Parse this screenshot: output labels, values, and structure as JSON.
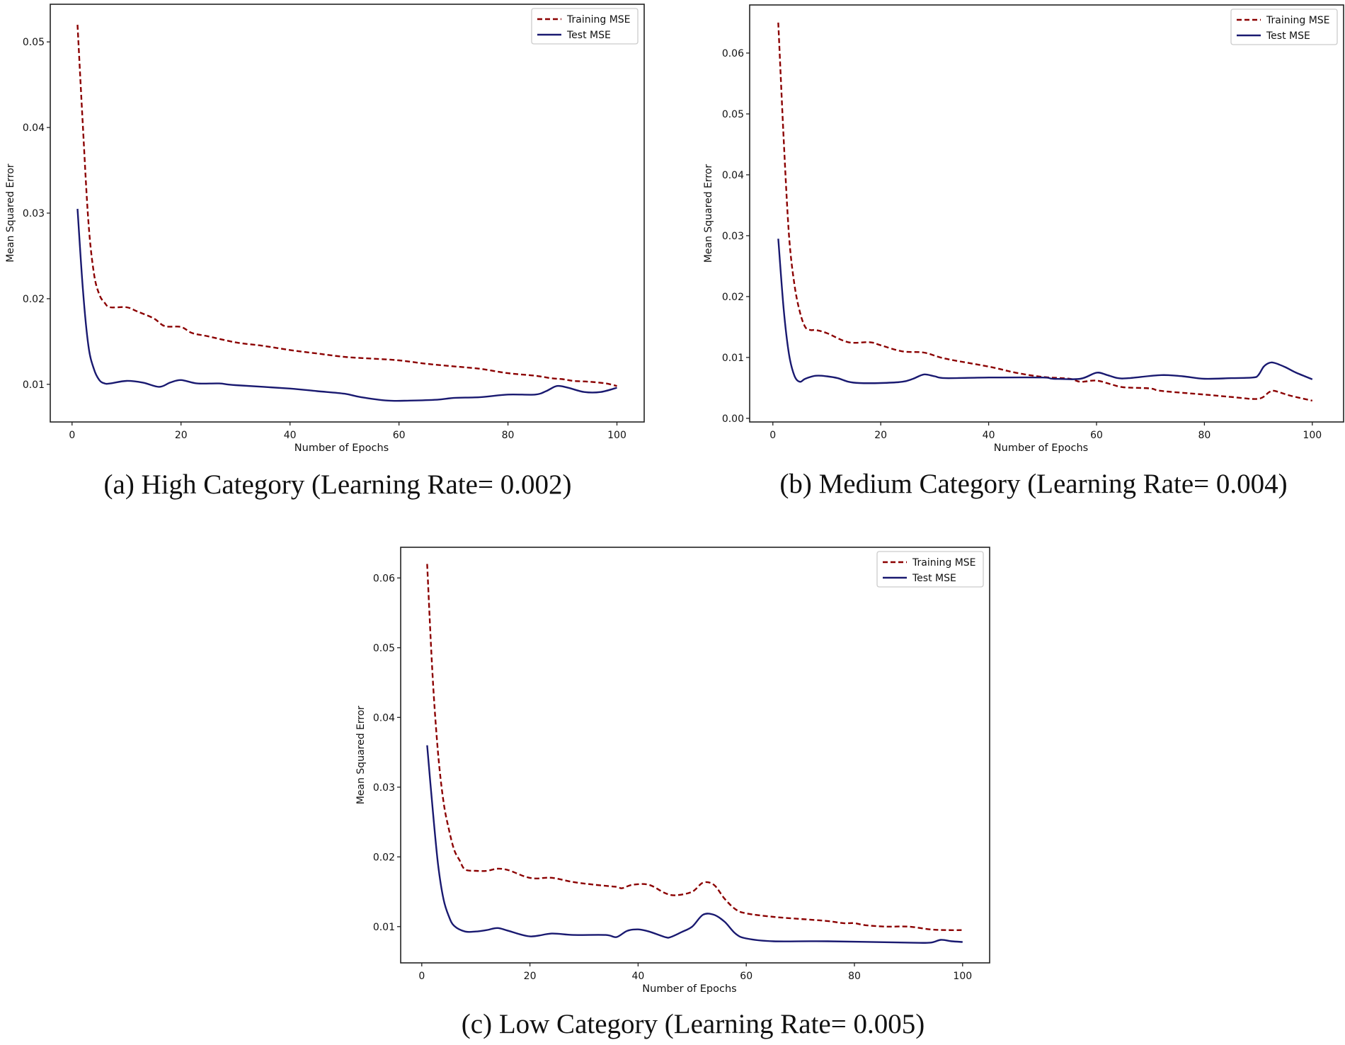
{
  "chart_data": [
    {
      "type": "line",
      "caption": "(a) High Category (Learning Rate= 0.002)",
      "xlabel": "Number of Epochs",
      "ylabel": "Mean Squared Error",
      "xlim": [
        -4,
        105
      ],
      "ylim": [
        0.0056,
        0.0544
      ],
      "xticks": [
        0,
        20,
        40,
        60,
        80,
        100
      ],
      "yticks": [
        0.01,
        0.02,
        0.03,
        0.04,
        0.05
      ],
      "ytick_labels": [
        "0.01",
        "0.02",
        "0.03",
        "0.04",
        "0.05"
      ],
      "legend": "top-right",
      "grid": false,
      "series": [
        {
          "name": "Training MSE",
          "color": "#8b0000",
          "style": "dashed",
          "x": [
            1,
            2,
            3,
            4,
            5,
            6,
            7,
            10,
            12,
            15,
            17,
            20,
            22,
            25,
            30,
            35,
            40,
            45,
            50,
            55,
            60,
            65,
            70,
            75,
            80,
            85,
            88,
            90,
            92,
            95,
            98,
            100
          ],
          "y": [
            0.052,
            0.04,
            0.029,
            0.023,
            0.0205,
            0.0195,
            0.019,
            0.019,
            0.0185,
            0.0177,
            0.0168,
            0.0167,
            0.016,
            0.0156,
            0.0149,
            0.0145,
            0.014,
            0.0136,
            0.0132,
            0.013,
            0.0128,
            0.0124,
            0.0121,
            0.0118,
            0.0113,
            0.011,
            0.0107,
            0.0106,
            0.0104,
            0.0103,
            0.0101,
            0.0098
          ]
        },
        {
          "name": "Test MSE",
          "color": "#191970",
          "style": "solid",
          "x": [
            1,
            2,
            3,
            4,
            5,
            6,
            7,
            10,
            13,
            16,
            18,
            20,
            23,
            27,
            30,
            40,
            45,
            50,
            53,
            58,
            62,
            67,
            70,
            75,
            80,
            85,
            87,
            89,
            91,
            94,
            97,
            100
          ],
          "y": [
            0.0305,
            0.021,
            0.0145,
            0.0118,
            0.0105,
            0.0101,
            0.0101,
            0.0104,
            0.0102,
            0.0097,
            0.0102,
            0.0105,
            0.0101,
            0.0101,
            0.0099,
            0.0095,
            0.0092,
            0.0089,
            0.0085,
            0.0081,
            0.0081,
            0.0082,
            0.0084,
            0.0085,
            0.0088,
            0.0088,
            0.0092,
            0.0098,
            0.0096,
            0.0091,
            0.0091,
            0.0096
          ]
        }
      ]
    },
    {
      "type": "line",
      "caption": "(b) Medium Category (Learning Rate= 0.004)",
      "xlabel": "Number of Epochs",
      "ylabel": "Mean Squared Error",
      "xlim": [
        -4.3,
        105.8
      ],
      "ylim": [
        -0.0006,
        0.0679
      ],
      "xticks": [
        0,
        20,
        40,
        60,
        80,
        100
      ],
      "yticks": [
        0.0,
        0.01,
        0.02,
        0.03,
        0.04,
        0.05,
        0.06
      ],
      "ytick_labels": [
        "0.00",
        "0.01",
        "0.02",
        "0.03",
        "0.04",
        "0.05",
        "0.06"
      ],
      "legend": "top-right",
      "grid": false,
      "series": [
        {
          "name": "Training MSE",
          "color": "#8b0000",
          "style": "dashed",
          "x": [
            1,
            2,
            3,
            4,
            5,
            6,
            7,
            8,
            10,
            14,
            18,
            20,
            24,
            28,
            32,
            40,
            45,
            50,
            55,
            57,
            60,
            63,
            65,
            70,
            72,
            80,
            85,
            90,
            92,
            93,
            96,
            100
          ],
          "y": [
            0.065,
            0.046,
            0.03,
            0.022,
            0.0175,
            0.015,
            0.0145,
            0.0145,
            0.014,
            0.0125,
            0.0125,
            0.012,
            0.011,
            0.0108,
            0.0098,
            0.0085,
            0.0075,
            0.0068,
            0.0065,
            0.006,
            0.0062,
            0.0055,
            0.0051,
            0.0049,
            0.0045,
            0.0039,
            0.0035,
            0.0032,
            0.0043,
            0.0045,
            0.0037,
            0.0029
          ]
        },
        {
          "name": "Test MSE",
          "color": "#191970",
          "style": "solid",
          "x": [
            1,
            2,
            3,
            4,
            5,
            6,
            8,
            10,
            12,
            14,
            16,
            20,
            24,
            26,
            28,
            30,
            32,
            40,
            50,
            52,
            57,
            60,
            62,
            64,
            66,
            72,
            76,
            80,
            85,
            89,
            90,
            91,
            92,
            93,
            95,
            97,
            100
          ],
          "y": [
            0.0295,
            0.018,
            0.0105,
            0.007,
            0.006,
            0.0065,
            0.007,
            0.0069,
            0.0066,
            0.006,
            0.0058,
            0.0058,
            0.006,
            0.0065,
            0.0072,
            0.0069,
            0.0066,
            0.0067,
            0.0067,
            0.0065,
            0.0065,
            0.0075,
            0.0071,
            0.0066,
            0.0066,
            0.0071,
            0.0069,
            0.0065,
            0.0066,
            0.0067,
            0.0071,
            0.0085,
            0.0091,
            0.0091,
            0.0084,
            0.0075,
            0.0064
          ]
        }
      ]
    },
    {
      "type": "line",
      "caption": "(c) Low Category (Learning Rate= 0.005)",
      "xlabel": "Number of Epochs",
      "ylabel": "Mean Squared Error",
      "xlim": [
        -3.9,
        105
      ],
      "ylim": [
        0.0048,
        0.0644
      ],
      "xticks": [
        0,
        20,
        40,
        60,
        80,
        100
      ],
      "yticks": [
        0.01,
        0.02,
        0.03,
        0.04,
        0.05,
        0.06
      ],
      "ytick_labels": [
        "0.01",
        "0.02",
        "0.03",
        "0.04",
        "0.05",
        "0.06"
      ],
      "legend": "top-right",
      "grid": false,
      "series": [
        {
          "name": "Training MSE",
          "color": "#8b0000",
          "style": "dashed",
          "x": [
            1,
            2,
            3,
            4,
            5,
            6,
            7,
            8,
            10,
            12,
            14,
            16,
            19,
            21,
            24,
            28,
            32,
            36,
            37,
            39,
            42,
            45,
            47,
            50,
            52,
            54,
            56,
            58,
            60,
            65,
            70,
            75,
            78,
            80,
            82,
            86,
            90,
            94,
            97,
            100
          ],
          "y": [
            0.062,
            0.046,
            0.035,
            0.028,
            0.024,
            0.021,
            0.0195,
            0.0182,
            0.018,
            0.018,
            0.0183,
            0.0181,
            0.0172,
            0.0169,
            0.017,
            0.0164,
            0.016,
            0.0157,
            0.0155,
            0.016,
            0.016,
            0.0148,
            0.0145,
            0.015,
            0.0163,
            0.016,
            0.014,
            0.0125,
            0.0119,
            0.0114,
            0.0111,
            0.0108,
            0.0105,
            0.0105,
            0.0102,
            0.01,
            0.01,
            0.0096,
            0.0095,
            0.0095
          ]
        },
        {
          "name": "Test MSE",
          "color": "#191970",
          "style": "solid",
          "x": [
            1,
            2,
            3,
            4,
            5,
            6,
            8,
            10,
            12,
            14,
            16,
            20,
            24,
            28,
            34,
            36,
            38,
            40,
            42,
            45,
            46,
            48,
            50,
            52,
            54,
            56,
            58,
            60,
            65,
            75,
            90,
            94,
            96,
            98,
            100
          ],
          "y": [
            0.036,
            0.027,
            0.019,
            0.014,
            0.0115,
            0.0101,
            0.0093,
            0.0093,
            0.0095,
            0.0098,
            0.0094,
            0.0086,
            0.009,
            0.0088,
            0.0088,
            0.0085,
            0.0094,
            0.0096,
            0.0093,
            0.0085,
            0.0085,
            0.0092,
            0.01,
            0.0117,
            0.0117,
            0.0107,
            0.009,
            0.0083,
            0.0079,
            0.0079,
            0.0077,
            0.0077,
            0.0081,
            0.0079,
            0.0078
          ]
        }
      ]
    }
  ]
}
